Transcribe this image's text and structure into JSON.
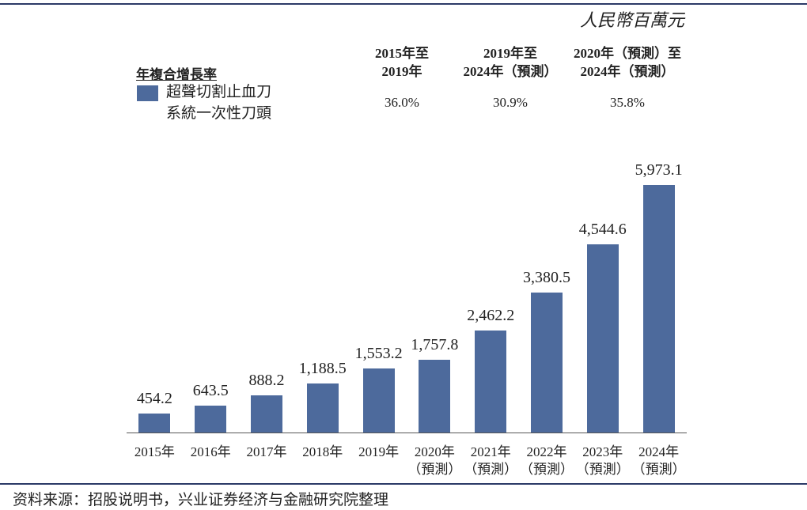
{
  "chart_data": {
    "type": "bar",
    "unit_label": "人民幣百萬元",
    "cagr_title": "年複合增長率",
    "cagr_columns": [
      {
        "header": "2015年至\n2019年",
        "value": "36.0%"
      },
      {
        "header": "2019年至\n2024年（預測）",
        "value": "30.9%"
      },
      {
        "header": "2020年（預測）至\n2024年（預測）",
        "value": "35.8%"
      }
    ],
    "categories": [
      "2015年",
      "2016年",
      "2017年",
      "2018年",
      "2019年",
      "2020年\n（預測）",
      "2021年\n（預測）",
      "2022年\n（預測）",
      "2023年\n（預測）",
      "2024年\n（預測）"
    ],
    "series": [
      {
        "name": "超聲切割止血刀\n系統一次性刀頭",
        "color": "#4d6a9c",
        "values": [
          454.2,
          643.5,
          888.2,
          1188.5,
          1553.2,
          1757.8,
          2462.2,
          3380.5,
          4544.6,
          5973.1
        ],
        "value_labels": [
          "454.2",
          "643.5",
          "888.2",
          "1,188.5",
          "1,553.2",
          "1,757.8",
          "2,462.2",
          "3,380.5",
          "4,544.6",
          "5,973.1"
        ]
      }
    ]
  },
  "source": "资料来源：招股说明书，兴业证券经济与金融研究院整理"
}
